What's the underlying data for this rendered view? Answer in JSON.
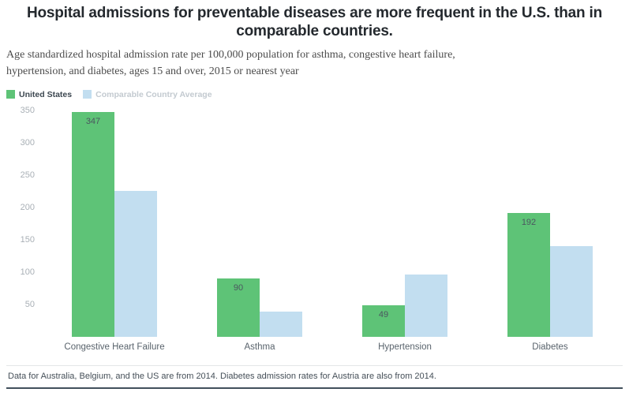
{
  "header": {
    "title": "Hospital admissions for preventable diseases are more frequent in the U.S. than in comparable countries.",
    "subtitle": "Age standardized hospital admission rate per 100,000 population for asthma, congestive heart failure, hypertension, and diabetes, ages 15 and over, 2015 or nearest year"
  },
  "legend": {
    "items": [
      {
        "label": "United States",
        "swatch_color": "#5ec377",
        "label_color": "#3c4750"
      },
      {
        "label": "Comparable Country Average",
        "swatch_color": "#c2def0",
        "label_color": "#c3cad0"
      }
    ]
  },
  "chart_data": {
    "type": "bar",
    "categories": [
      "Congestive Heart Failure",
      "Asthma",
      "Hypertension",
      "Diabetes"
    ],
    "series": [
      {
        "name": "United States",
        "color": "#5ec377",
        "values": [
          347,
          90,
          49,
          192
        ],
        "show_value_labels": true
      },
      {
        "name": "Comparable Country Average",
        "color": "#c2def0",
        "values": [
          225,
          39,
          96,
          140
        ],
        "show_value_labels": false
      }
    ],
    "title": "Hospital admissions for preventable diseases are more frequent in the U.S. than in comparable countries.",
    "xlabel": "",
    "ylabel": "Age standardized hospital admission rate per 100,000 population",
    "ylim": [
      0,
      350
    ],
    "yticks": [
      50,
      100,
      150,
      200,
      250,
      300,
      350
    ],
    "grid": false,
    "legend_position": "top-left"
  },
  "footer": {
    "note": "Data for Australia, Belgium, and the US are from 2014. Diabetes admission rates for Austria are also from 2014."
  }
}
